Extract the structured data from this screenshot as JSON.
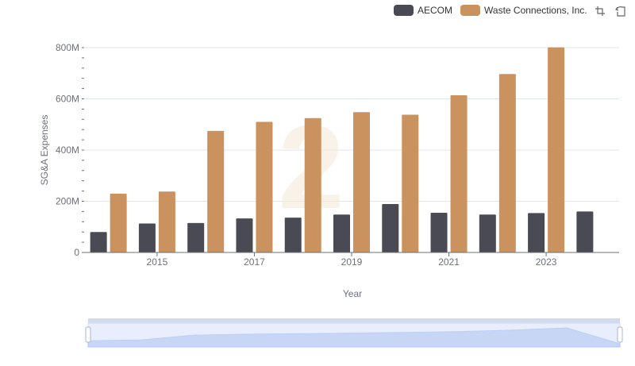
{
  "chart_data": {
    "type": "bar",
    "categories": [
      "2014",
      "2015",
      "2016",
      "2017",
      "2018",
      "2019",
      "2020",
      "2021",
      "2022",
      "2023",
      "2024"
    ],
    "x_tick_labels": [
      "2015",
      "2017",
      "2019",
      "2021",
      "2023"
    ],
    "series": [
      {
        "name": "AECOM",
        "color": "#4a4a55",
        "values": [
          80,
          113,
          115,
          133,
          136,
          148,
          189,
          155,
          148,
          154,
          160
        ]
      },
      {
        "name": "Waste Connections, Inc.",
        "color": "#c9925e",
        "values": [
          230,
          238,
          475,
          510,
          525,
          548,
          538,
          614,
          697,
          801,
          null
        ]
      }
    ],
    "unit": "M",
    "ylim": [
      0,
      800
    ],
    "yticks": [
      0,
      200,
      400,
      600,
      800
    ],
    "ytick_labels": [
      "0",
      "200M",
      "400M",
      "600M",
      "800M"
    ],
    "xlabel": "Year",
    "ylabel": "SG&A Expenses",
    "legend_position": "top-right",
    "grid": true
  },
  "toolbar": {
    "icons": [
      "zoom-icon",
      "restore-icon"
    ]
  },
  "datazoom": {
    "start_percent": 0,
    "end_percent": 100
  }
}
